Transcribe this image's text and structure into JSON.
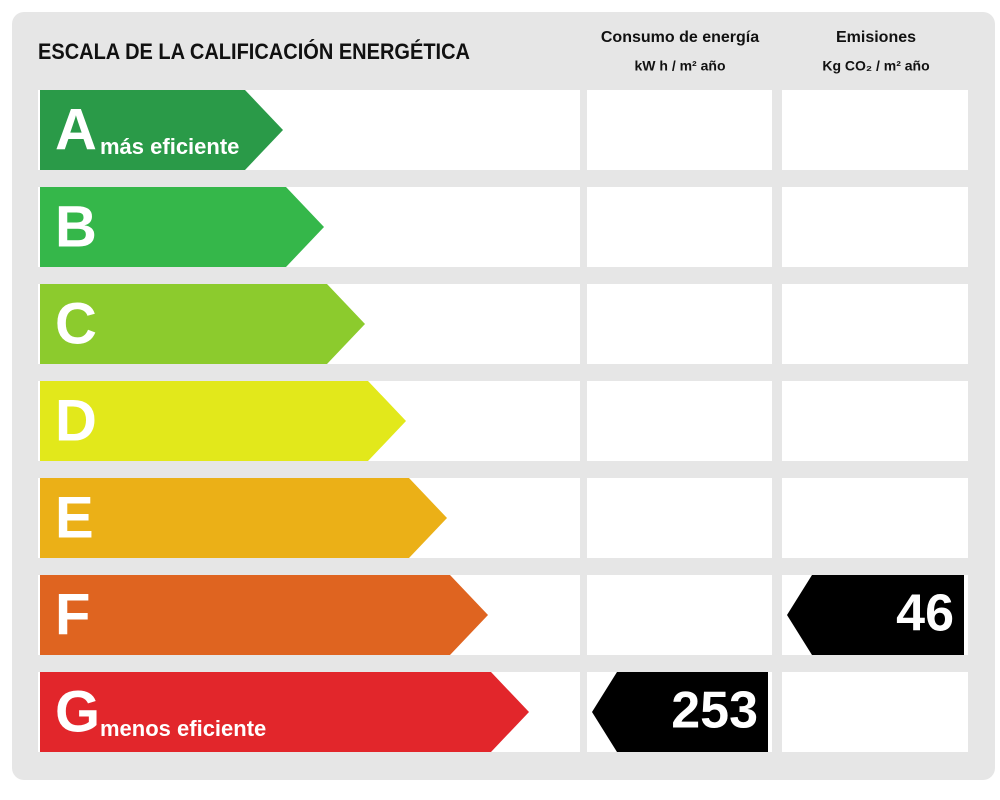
{
  "title": "ESCALA DE LA CALIFICACIÓN ENERGÉTICA",
  "columns": [
    {
      "title": "Consumo de energía",
      "unit": "kW h / m² año"
    },
    {
      "title": "Emisiones",
      "unit": "Kg CO₂ / m² año"
    }
  ],
  "ratings": [
    {
      "letter": "A",
      "label": "más eficiente",
      "color": "#2a9a48"
    },
    {
      "letter": "B",
      "color": "#35b74a"
    },
    {
      "letter": "C",
      "color": "#8ccb2d"
    },
    {
      "letter": "D",
      "color": "#e2e81b"
    },
    {
      "letter": "E",
      "color": "#ebb017"
    },
    {
      "letter": "F",
      "color": "#df6420"
    },
    {
      "letter": "G",
      "label": "menos eficiente",
      "color": "#e2262b"
    }
  ],
  "results": [
    {
      "rating": "G",
      "value": 253
    },
    {
      "rating": "F",
      "value": 46
    }
  ]
}
